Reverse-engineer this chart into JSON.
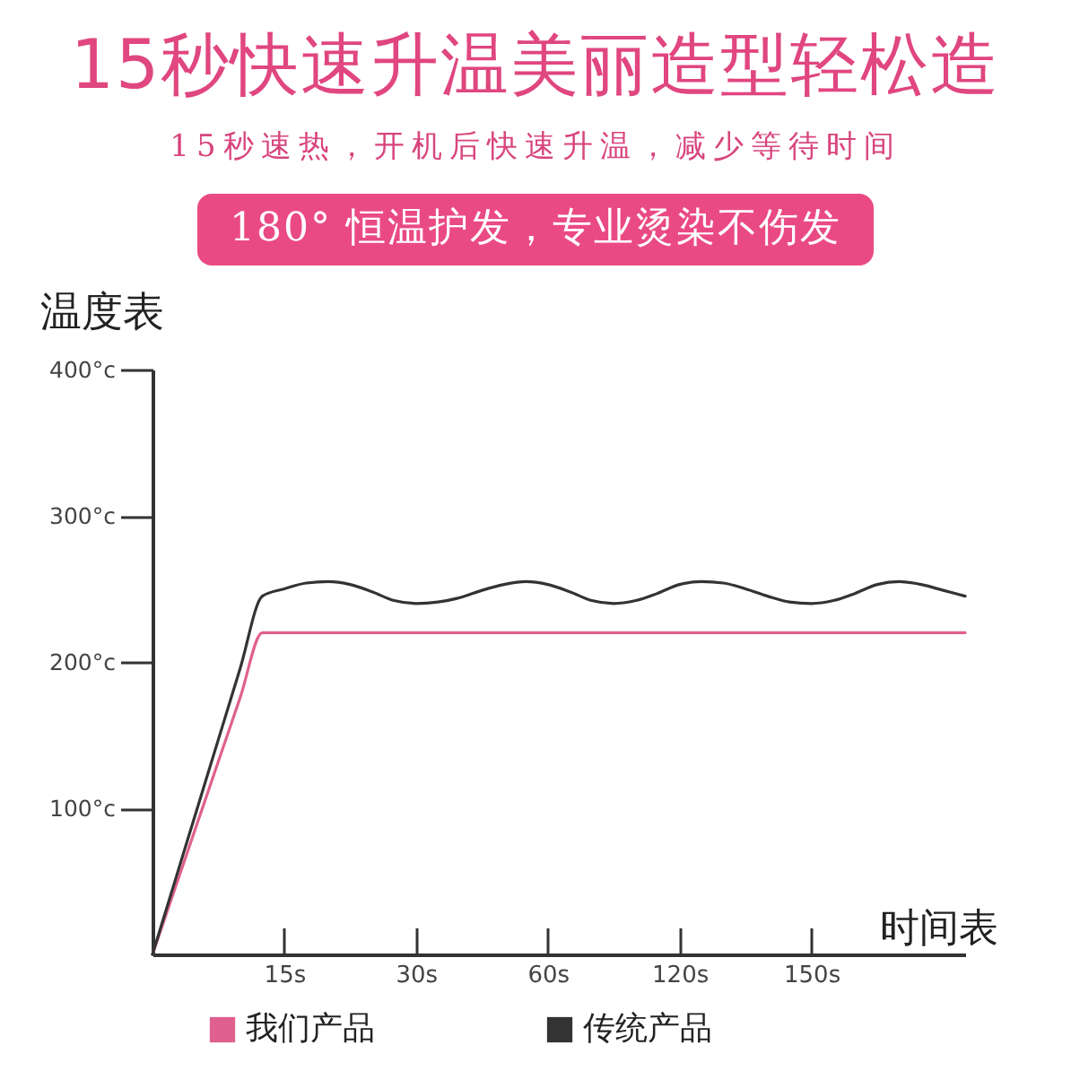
{
  "chart_data": {
    "type": "line",
    "title": "15秒快速升温美丽造型轻松造",
    "subtitle": "15秒速热，开机后快速升温，减少等待时间",
    "annotations": [
      "180° 恒温护发，专业烫染不伤发"
    ],
    "xlabel": "时间表",
    "ylabel": "温度表",
    "categories": [
      null,
      null,
      null,
      null,
      null,
      null,
      "15s",
      null,
      null,
      null,
      null,
      null,
      "30s",
      null,
      null,
      null,
      null,
      null,
      "60s",
      null,
      null,
      null,
      null,
      null,
      "120s",
      null,
      null,
      null,
      null,
      null,
      "150s",
      null,
      null,
      null,
      null,
      null,
      null,
      null
    ],
    "ylim": [
      0,
      400
    ],
    "yticks": [
      {
        "value": 100,
        "label": "100°c"
      },
      {
        "value": 200,
        "label": "200°c"
      },
      {
        "value": 300,
        "label": "300°c"
      },
      {
        "value": 400,
        "label": "400°c"
      }
    ],
    "legend": "bottom",
    "series": [
      {
        "name": "我们产品",
        "color": "#e0608f",
        "values": [
          0,
          44,
          88,
          132,
          176,
          220,
          220,
          220,
          220,
          220,
          220,
          220,
          220,
          220,
          220,
          220,
          220,
          220,
          220,
          220,
          220,
          220,
          220,
          220,
          220,
          220,
          220,
          220,
          220,
          220,
          220,
          220,
          220,
          220,
          220,
          220,
          220,
          220
        ]
      },
      {
        "name": "传统产品",
        "color": "#333333",
        "values": [
          0,
          49,
          98,
          147,
          196,
          245,
          250,
          254,
          255,
          253,
          248,
          242,
          240,
          241,
          244,
          249,
          253,
          255,
          253,
          248,
          242,
          240,
          242,
          247,
          253,
          255,
          254,
          250,
          245,
          241,
          240,
          242,
          247,
          253,
          255,
          253,
          249,
          245
        ]
      }
    ]
  }
}
